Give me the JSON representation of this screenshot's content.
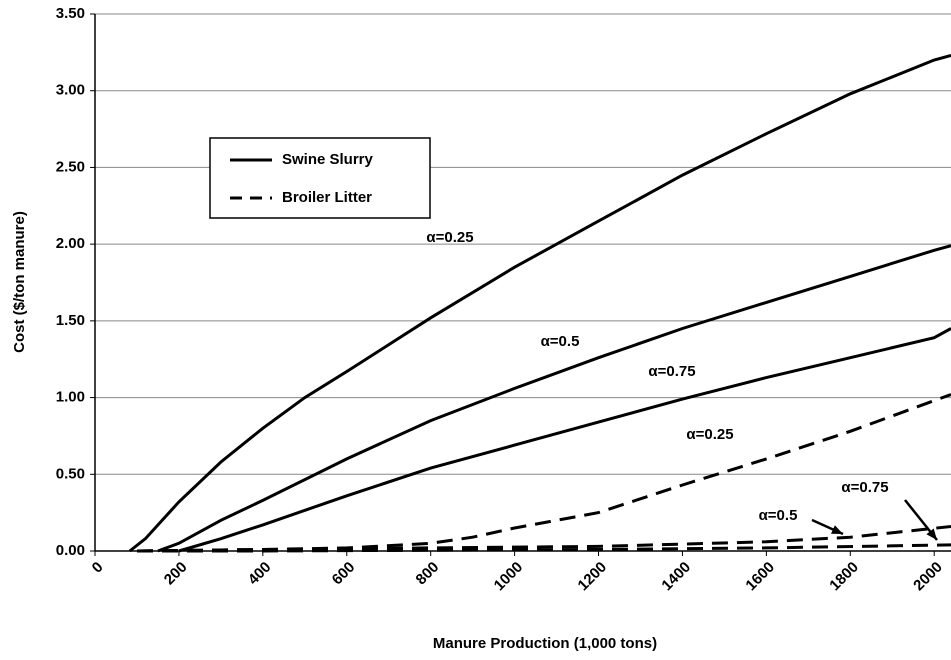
{
  "chart_data": {
    "type": "line",
    "xlabel": "Manure Production (1,000 tons)",
    "ylabel": "Cost ($/ton manure)",
    "xlim": [
      0,
      2040
    ],
    "ylim": [
      0,
      3.5
    ],
    "xticks": [
      0,
      200,
      400,
      600,
      800,
      1000,
      1200,
      1400,
      1600,
      1800,
      2000
    ],
    "yticks": [
      {
        "value": 0,
        "label": "0.00"
      },
      {
        "value": 0.5,
        "label": "0.50"
      },
      {
        "value": 1,
        "label": "1.00"
      },
      {
        "value": 1.5,
        "label": "1.50"
      },
      {
        "value": 2,
        "label": "2.00"
      },
      {
        "value": 2.5,
        "label": "2.50"
      },
      {
        "value": 3,
        "label": "3.00"
      },
      {
        "value": 3.5,
        "label": "3.50"
      }
    ],
    "grid": true,
    "legend": [
      {
        "name": "Swine Slurry",
        "style": "solid"
      },
      {
        "name": "Broiler Litter",
        "style": "dashed"
      }
    ],
    "series": [
      {
        "legend": 0,
        "label": "α=0.25",
        "color": "#000000",
        "x": [
          83,
          120,
          200,
          300,
          400,
          500,
          600,
          800,
          1000,
          1200,
          1400,
          1600,
          1800,
          2000,
          2040
        ],
        "values": [
          0,
          0.08,
          0.32,
          0.58,
          0.8,
          1.0,
          1.17,
          1.52,
          1.85,
          2.15,
          2.45,
          2.72,
          2.98,
          3.2,
          3.23
        ]
      },
      {
        "legend": 0,
        "label": "α=0.5",
        "color": "#000000",
        "x": [
          150,
          200,
          300,
          400,
          600,
          800,
          1000,
          1200,
          1400,
          1600,
          1800,
          2000,
          2040
        ],
        "values": [
          0,
          0.05,
          0.2,
          0.33,
          0.6,
          0.85,
          1.06,
          1.26,
          1.45,
          1.62,
          1.79,
          1.96,
          1.99
        ]
      },
      {
        "legend": 0,
        "label": "α=0.75",
        "color": "#000000",
        "x": [
          200,
          300,
          400,
          600,
          800,
          1000,
          1200,
          1400,
          1600,
          1800,
          2000,
          2040
        ],
        "values": [
          0,
          0.08,
          0.17,
          0.36,
          0.54,
          0.69,
          0.84,
          0.99,
          1.13,
          1.26,
          1.39,
          1.45
        ]
      },
      {
        "legend": 1,
        "label": "α=0.25",
        "color": "#000000",
        "x": [
          100,
          400,
          600,
          800,
          900,
          1000,
          1200,
          1400,
          1600,
          1800,
          2040
        ],
        "values": [
          0,
          0.01,
          0.02,
          0.05,
          0.09,
          0.15,
          0.25,
          0.43,
          0.6,
          0.78,
          1.02
        ]
      },
      {
        "legend": 1,
        "label": "α=0.5",
        "color": "#000000",
        "x": [
          100,
          400,
          800,
          1200,
          1600,
          1800,
          2040
        ],
        "values": [
          0,
          0.01,
          0.02,
          0.03,
          0.06,
          0.09,
          0.16
        ]
      },
      {
        "legend": 1,
        "label": "α=0.75",
        "color": "#000000",
        "x": [
          100,
          400,
          1200,
          1600,
          2040
        ],
        "values": [
          0,
          0,
          0.01,
          0.02,
          0.04
        ]
      }
    ]
  }
}
